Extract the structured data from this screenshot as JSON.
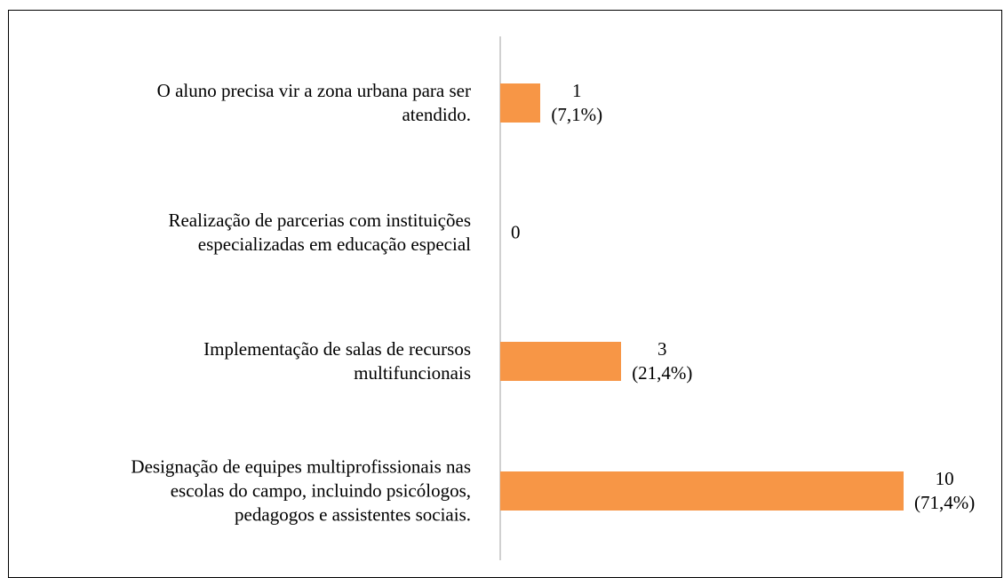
{
  "chart_data": {
    "type": "bar",
    "orientation": "horizontal",
    "categories": [
      "O aluno precisa vir a zona urbana para ser\natendido.",
      "Realização de parcerias com instituições\nespecializadas em educação especial",
      "Implementação de salas de recursos\nmultifuncionais",
      "Designação de equipes multiprofissionais nas\nescolas do campo, incluindo psicólogos,\npedagogos e assistentes sociais."
    ],
    "values": [
      1,
      0,
      3,
      10
    ],
    "value_labels": [
      "1\n(7,1%)",
      "0",
      "3\n(21,4%)",
      "10\n(71,4%)"
    ],
    "color": "#f79646"
  }
}
